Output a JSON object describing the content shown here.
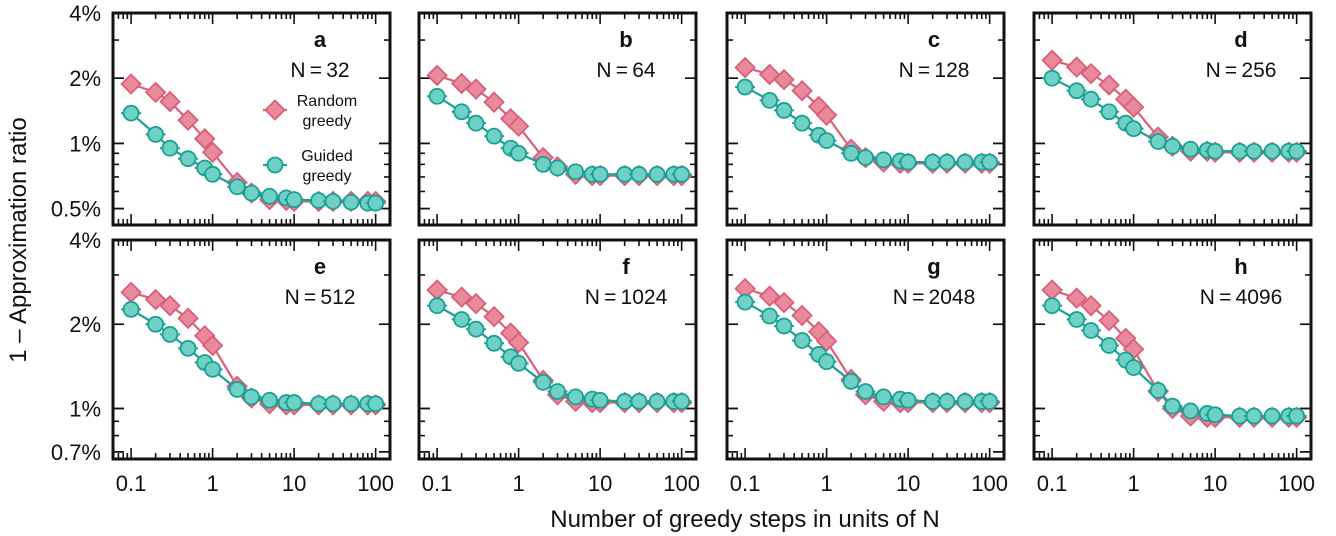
{
  "figure": {
    "ylabel": "1 – Approximation ratio",
    "xlabel": "Number of greedy steps in units of N"
  },
  "legend": {
    "random": [
      "Random",
      "greedy"
    ],
    "guided": [
      "Guided",
      "greedy"
    ]
  },
  "colors": {
    "random_line": "#d95f7a",
    "random_fill": "#e8899c",
    "guided_line": "#1aa094",
    "guided_fill": "#6fd1c6"
  },
  "chart_data": [
    {
      "type": "line",
      "panel": "a",
      "label": "N = 32",
      "x_scale": "log",
      "y_scale": "log",
      "xlim": [
        0.06,
        150
      ],
      "ylim": [
        0.42,
        4.0
      ],
      "y_ticks": [
        0.5,
        1,
        2,
        4
      ],
      "y_tick_labels": [
        "0.5%",
        "1%",
        "2%",
        "4%"
      ],
      "x_ticks": [
        0.1,
        1,
        10,
        100
      ],
      "x_tick_labels": [
        "0.1",
        "1",
        "10",
        "100"
      ],
      "x": [
        0.1,
        0.2,
        0.3,
        0.5,
        0.8,
        1,
        2,
        3,
        5,
        8,
        10,
        20,
        30,
        50,
        80,
        100
      ],
      "series": [
        {
          "name": "Random greedy",
          "marker": "diamond",
          "values": [
            1.88,
            1.72,
            1.56,
            1.28,
            1.05,
            0.91,
            0.66,
            0.59,
            0.55,
            0.545,
            0.54,
            0.54,
            0.54,
            0.54,
            0.54,
            0.54
          ]
        },
        {
          "name": "Guided greedy",
          "marker": "circle",
          "values": [
            1.38,
            1.1,
            0.95,
            0.85,
            0.77,
            0.72,
            0.63,
            0.59,
            0.57,
            0.56,
            0.55,
            0.545,
            0.54,
            0.535,
            0.53,
            0.53
          ]
        }
      ]
    },
    {
      "type": "line",
      "panel": "b",
      "label": "N = 64",
      "x_scale": "log",
      "y_scale": "log",
      "xlim": [
        0.06,
        150
      ],
      "ylim": [
        0.42,
        4.0
      ],
      "y_ticks": [
        0.5,
        1,
        2,
        4
      ],
      "y_tick_labels": [
        "0.5%",
        "1%",
        "2%",
        "4%"
      ],
      "x_ticks": [
        0.1,
        1,
        10,
        100
      ],
      "x_tick_labels": [
        "0.1",
        "1",
        "10",
        "100"
      ],
      "x": [
        0.1,
        0.2,
        0.3,
        0.5,
        0.8,
        1,
        2,
        3,
        5,
        8,
        10,
        20,
        30,
        50,
        80,
        100
      ],
      "series": [
        {
          "name": "Random greedy",
          "marker": "diamond",
          "values": [
            2.06,
            1.89,
            1.78,
            1.55,
            1.3,
            1.2,
            0.86,
            0.78,
            0.72,
            0.71,
            0.71,
            0.71,
            0.71,
            0.71,
            0.71,
            0.71
          ]
        },
        {
          "name": "Guided greedy",
          "marker": "circle",
          "values": [
            1.65,
            1.4,
            1.24,
            1.08,
            0.95,
            0.9,
            0.8,
            0.77,
            0.74,
            0.72,
            0.72,
            0.72,
            0.72,
            0.72,
            0.72,
            0.72
          ]
        }
      ]
    },
    {
      "type": "line",
      "panel": "c",
      "label": "N = 128",
      "x_scale": "log",
      "y_scale": "log",
      "xlim": [
        0.06,
        150
      ],
      "ylim": [
        0.42,
        4.0
      ],
      "y_ticks": [
        0.5,
        1,
        2,
        4
      ],
      "y_tick_labels": [
        "0.5%",
        "1%",
        "2%",
        "4%"
      ],
      "x_ticks": [
        0.1,
        1,
        10,
        100
      ],
      "x_tick_labels": [
        "0.1",
        "1",
        "10",
        "100"
      ],
      "x": [
        0.1,
        0.2,
        0.3,
        0.5,
        0.8,
        1,
        2,
        3,
        5,
        8,
        10,
        20,
        30,
        50,
        80,
        100
      ],
      "series": [
        {
          "name": "Random greedy",
          "marker": "diamond",
          "values": [
            2.24,
            2.08,
            1.97,
            1.75,
            1.48,
            1.35,
            0.94,
            0.86,
            0.82,
            0.81,
            0.81,
            0.81,
            0.81,
            0.81,
            0.81,
            0.81
          ]
        },
        {
          "name": "Guided greedy",
          "marker": "circle",
          "values": [
            1.82,
            1.58,
            1.42,
            1.24,
            1.09,
            1.03,
            0.9,
            0.86,
            0.84,
            0.83,
            0.82,
            0.82,
            0.82,
            0.82,
            0.82,
            0.82
          ]
        }
      ]
    },
    {
      "type": "line",
      "panel": "d",
      "label": "N = 256",
      "x_scale": "log",
      "y_scale": "log",
      "xlim": [
        0.06,
        150
      ],
      "ylim": [
        0.42,
        4.0
      ],
      "y_ticks": [
        0.5,
        1,
        2,
        4
      ],
      "y_tick_labels": [
        "0.5%",
        "1%",
        "2%",
        "4%"
      ],
      "x_ticks": [
        0.1,
        1,
        10,
        100
      ],
      "x_tick_labels": [
        "0.1",
        "1",
        "10",
        "100"
      ],
      "x": [
        0.1,
        0.2,
        0.3,
        0.5,
        0.8,
        1,
        2,
        3,
        5,
        8,
        10,
        20,
        30,
        50,
        80,
        100
      ],
      "series": [
        {
          "name": "Random greedy",
          "marker": "diamond",
          "values": [
            2.42,
            2.25,
            2.1,
            1.86,
            1.6,
            1.47,
            1.07,
            0.97,
            0.92,
            0.92,
            0.91,
            0.91,
            0.91,
            0.91,
            0.91,
            0.91
          ]
        },
        {
          "name": "Guided greedy",
          "marker": "circle",
          "values": [
            2.0,
            1.75,
            1.6,
            1.4,
            1.24,
            1.17,
            1.02,
            0.97,
            0.94,
            0.93,
            0.92,
            0.92,
            0.92,
            0.92,
            0.92,
            0.92
          ]
        }
      ]
    },
    {
      "type": "line",
      "panel": "e",
      "label": "N = 512",
      "x_scale": "log",
      "y_scale": "log",
      "xlim": [
        0.06,
        150
      ],
      "ylim": [
        0.66,
        4.0
      ],
      "y_ticks": [
        0.7,
        1,
        2,
        4
      ],
      "y_tick_labels": [
        "0.7%",
        "1%",
        "2%",
        "4%"
      ],
      "x_ticks": [
        0.1,
        1,
        10,
        100
      ],
      "x_tick_labels": [
        "0.1",
        "1",
        "10",
        "100"
      ],
      "x": [
        0.1,
        0.2,
        0.3,
        0.5,
        0.8,
        1,
        2,
        3,
        5,
        8,
        10,
        20,
        30,
        50,
        80,
        100
      ],
      "series": [
        {
          "name": "Random greedy",
          "marker": "diamond",
          "values": [
            2.6,
            2.45,
            2.33,
            2.1,
            1.82,
            1.68,
            1.2,
            1.09,
            1.04,
            1.03,
            1.03,
            1.03,
            1.03,
            1.03,
            1.03,
            1.03
          ]
        },
        {
          "name": "Guided greedy",
          "marker": "circle",
          "values": [
            2.26,
            2.0,
            1.84,
            1.64,
            1.46,
            1.38,
            1.17,
            1.1,
            1.07,
            1.05,
            1.05,
            1.04,
            1.04,
            1.04,
            1.04,
            1.04
          ]
        }
      ]
    },
    {
      "type": "line",
      "panel": "f",
      "label": "N = 1024",
      "x_scale": "log",
      "y_scale": "log",
      "xlim": [
        0.06,
        150
      ],
      "ylim": [
        0.66,
        4.0
      ],
      "y_ticks": [
        0.7,
        1,
        2,
        4
      ],
      "y_tick_labels": [
        "0.7%",
        "1%",
        "2%",
        "4%"
      ],
      "x_ticks": [
        0.1,
        1,
        10,
        100
      ],
      "x_tick_labels": [
        "0.1",
        "1",
        "10",
        "100"
      ],
      "x": [
        0.1,
        0.2,
        0.3,
        0.5,
        0.8,
        1,
        2,
        3,
        5,
        8,
        10,
        20,
        30,
        50,
        80,
        100
      ],
      "series": [
        {
          "name": "Random greedy",
          "marker": "diamond",
          "values": [
            2.65,
            2.5,
            2.37,
            2.13,
            1.86,
            1.72,
            1.26,
            1.12,
            1.06,
            1.05,
            1.05,
            1.05,
            1.05,
            1.05,
            1.05,
            1.05
          ]
        },
        {
          "name": "Guided greedy",
          "marker": "circle",
          "values": [
            2.33,
            2.08,
            1.92,
            1.71,
            1.53,
            1.45,
            1.24,
            1.15,
            1.1,
            1.08,
            1.07,
            1.06,
            1.06,
            1.06,
            1.06,
            1.06
          ]
        }
      ]
    },
    {
      "type": "line",
      "panel": "g",
      "label": "N = 2048",
      "x_scale": "log",
      "y_scale": "log",
      "xlim": [
        0.06,
        150
      ],
      "ylim": [
        0.66,
        4.0
      ],
      "y_ticks": [
        0.7,
        1,
        2,
        4
      ],
      "y_tick_labels": [
        "0.7%",
        "1%",
        "2%",
        "4%"
      ],
      "x_ticks": [
        0.1,
        1,
        10,
        100
      ],
      "x_tick_labels": [
        "0.1",
        "1",
        "10",
        "100"
      ],
      "x": [
        0.1,
        0.2,
        0.3,
        0.5,
        0.8,
        1,
        2,
        3,
        5,
        8,
        10,
        20,
        30,
        50,
        80,
        100
      ],
      "series": [
        {
          "name": "Random greedy",
          "marker": "diamond",
          "values": [
            2.68,
            2.52,
            2.39,
            2.15,
            1.88,
            1.74,
            1.27,
            1.12,
            1.06,
            1.05,
            1.05,
            1.05,
            1.05,
            1.05,
            1.05,
            1.05
          ]
        },
        {
          "name": "Guided greedy",
          "marker": "circle",
          "values": [
            2.4,
            2.14,
            1.97,
            1.75,
            1.56,
            1.47,
            1.25,
            1.15,
            1.1,
            1.08,
            1.07,
            1.06,
            1.06,
            1.06,
            1.06,
            1.06
          ]
        }
      ]
    },
    {
      "type": "line",
      "panel": "h",
      "label": "N = 4096",
      "x_scale": "log",
      "y_scale": "log",
      "xlim": [
        0.06,
        150
      ],
      "ylim": [
        0.66,
        4.0
      ],
      "y_ticks": [
        0.7,
        1,
        2,
        4
      ],
      "y_tick_labels": [
        "0.7%",
        "1%",
        "2%",
        "4%"
      ],
      "x_ticks": [
        0.1,
        1,
        10,
        100
      ],
      "x_tick_labels": [
        "0.1",
        "1",
        "10",
        "100"
      ],
      "x": [
        0.1,
        0.2,
        0.3,
        0.5,
        0.8,
        1,
        2,
        3,
        5,
        8,
        10,
        20,
        30,
        50,
        80,
        100
      ],
      "series": [
        {
          "name": "Random greedy",
          "marker": "diamond",
          "values": [
            2.65,
            2.48,
            2.33,
            2.06,
            1.78,
            1.63,
            1.15,
            1.0,
            0.94,
            0.93,
            0.93,
            0.93,
            0.93,
            0.93,
            0.93,
            0.93
          ]
        },
        {
          "name": "Guided greedy",
          "marker": "circle",
          "values": [
            2.33,
            2.08,
            1.9,
            1.68,
            1.49,
            1.4,
            1.16,
            1.02,
            0.98,
            0.96,
            0.95,
            0.94,
            0.94,
            0.94,
            0.94,
            0.94
          ]
        }
      ]
    }
  ]
}
